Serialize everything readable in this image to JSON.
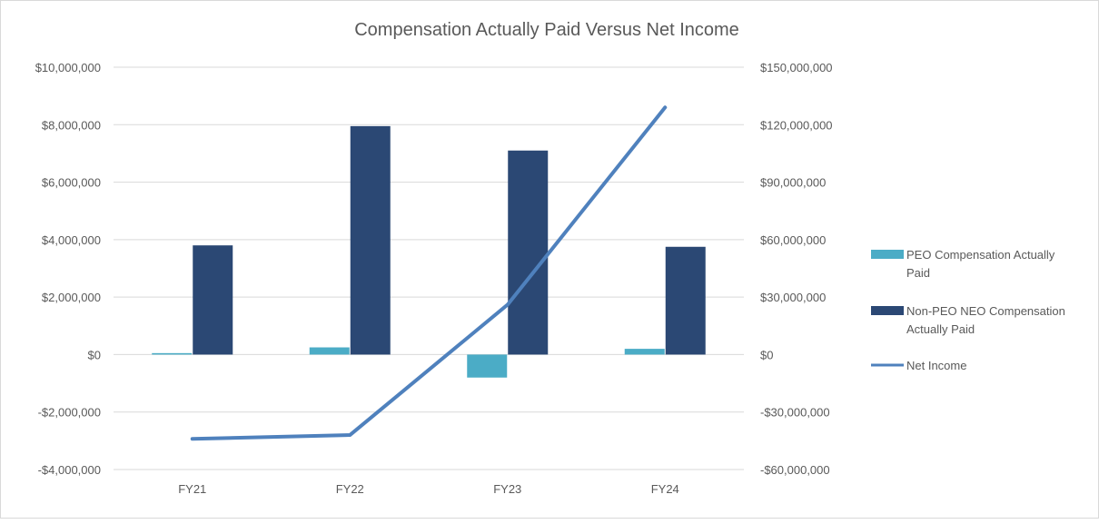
{
  "chart_data": {
    "type": "bar",
    "title": "Compensation Actually Paid Versus Net Income",
    "categories": [
      "FY21",
      "FY22",
      "FY23",
      "FY24"
    ],
    "y_left": {
      "ylim": [
        -4000000,
        10000000
      ],
      "ticks": [
        -4000000,
        -2000000,
        0,
        2000000,
        4000000,
        6000000,
        8000000,
        10000000
      ],
      "tick_labels": [
        "-$4,000,000",
        "-$2,000,000",
        "$0",
        "$2,000,000",
        "$4,000,000",
        "$6,000,000",
        "$8,000,000",
        "$10,000,000"
      ]
    },
    "y_right": {
      "ylim": [
        -60000000,
        150000000
      ],
      "ticks": [
        -60000000,
        -30000000,
        0,
        30000000,
        60000000,
        90000000,
        120000000,
        150000000
      ],
      "tick_labels": [
        "-$60,000,000",
        "-$30,000,000",
        "$0",
        "$30,000,000",
        "$60,000,000",
        "$90,000,000",
        "$120,000,000",
        "$150,000,000"
      ]
    },
    "grid": true,
    "legend_position": "right",
    "series": [
      {
        "name": "PEO Compensation Actually Paid",
        "kind": "bar",
        "axis": "left",
        "color": "#4bacc6",
        "values": [
          50000,
          250000,
          -800000,
          200000
        ]
      },
      {
        "name": "Non-PEO NEO Compensation Actually Paid",
        "kind": "bar",
        "axis": "left",
        "color": "#2b4874",
        "values": [
          3800000,
          7950000,
          7100000,
          3750000
        ]
      },
      {
        "name": "Net Income",
        "kind": "line",
        "axis": "right",
        "color": "#4f81bd",
        "values": [
          -44000000,
          -42000000,
          26000000,
          129000000
        ]
      }
    ],
    "legend": [
      {
        "lines": [
          "PEO Compensation Actually",
          "Paid"
        ],
        "color": "#4bacc6",
        "marker": "box"
      },
      {
        "lines": [
          "Non-PEO NEO Compensation",
          "Actually Paid"
        ],
        "color": "#2b4874",
        "marker": "box"
      },
      {
        "lines": [
          "Net Income"
        ],
        "color": "#4f81bd",
        "marker": "line"
      }
    ],
    "colors": {
      "grid": "#d9d9d9",
      "text": "#595959"
    }
  }
}
